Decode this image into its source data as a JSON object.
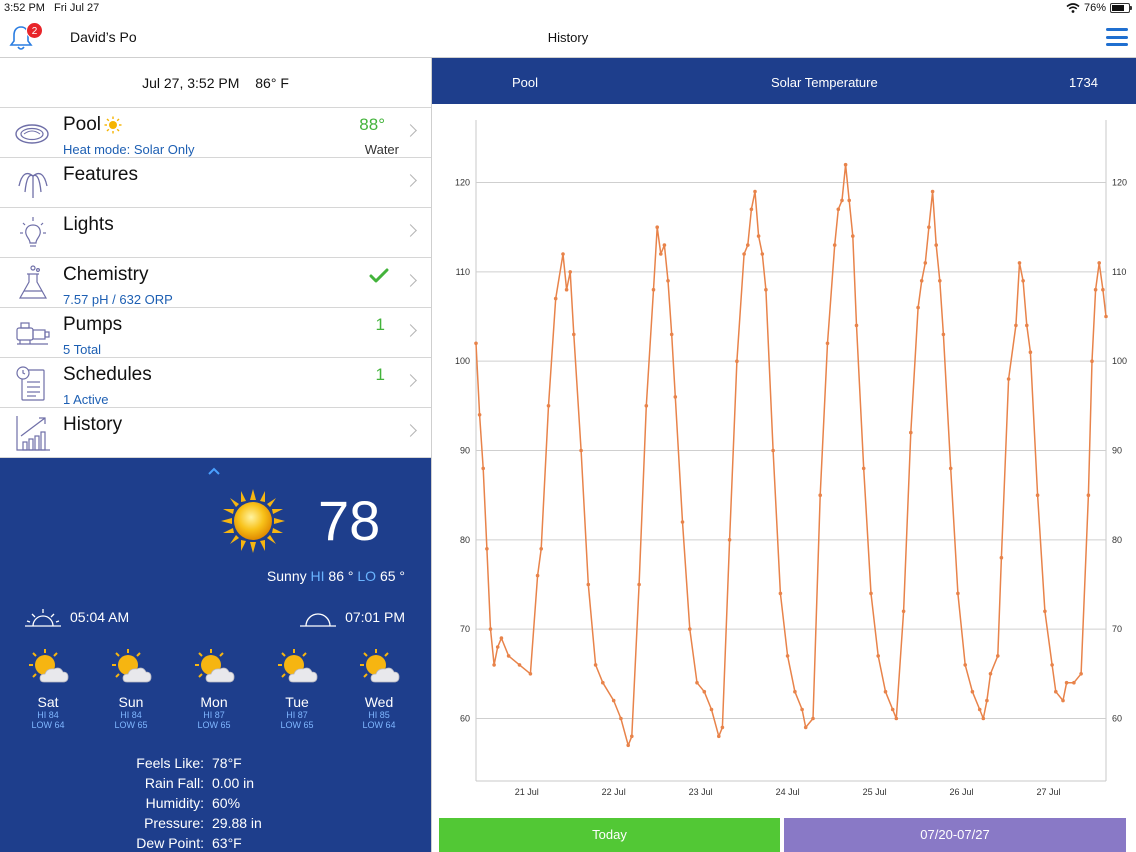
{
  "status_bar": {
    "time": "3:52 PM",
    "date": "Fri Jul 27",
    "battery": "76%",
    "battery_fraction": 0.76
  },
  "header": {
    "pool_name": "David’s Po",
    "title": "History",
    "notification_count": "2",
    "bell_icon": "bell-icon",
    "menu_icon": "hamburger-menu-icon"
  },
  "left": {
    "date": "Jul 27, 3:52 PM",
    "air_temp": "86° F",
    "menu": [
      {
        "label": "Pool",
        "sub": "Heat mode: Solar Only",
        "value": "88°",
        "value2": "Water",
        "icon": "pool-icon"
      },
      {
        "label": "Features",
        "sub": "",
        "value": "",
        "value2": "",
        "icon": "fountain-icon"
      },
      {
        "label": "Lights",
        "sub": "",
        "value": "",
        "value2": "",
        "icon": "lightbulb-icon"
      },
      {
        "label": "Chemistry",
        "sub": "7.57 pH / 632 ORP",
        "value": "",
        "value2": "",
        "icon": "beaker-icon"
      },
      {
        "label": "Pumps",
        "sub": "5 Total",
        "value": "1",
        "value2": "",
        "icon": "pump-icon"
      },
      {
        "label": "Schedules",
        "sub": "1 Active",
        "value": "1",
        "value2": "",
        "icon": "schedule-icon"
      },
      {
        "label": "History",
        "sub": "",
        "value": "",
        "value2": "",
        "icon": "bar-chart-icon"
      }
    ]
  },
  "weather": {
    "temp": "78",
    "condition": "Sunny",
    "hi_label": "HI",
    "hi": "86 °",
    "lo_label": "LO",
    "lo": "65 °",
    "sunrise": "05:04 AM",
    "sunset": "07:01 PM",
    "forecast": [
      {
        "day": "Sat",
        "hi": "HI 84",
        "lo": "LOW 64"
      },
      {
        "day": "Sun",
        "hi": "HI 84",
        "lo": "LOW 65"
      },
      {
        "day": "Mon",
        "hi": "HI 87",
        "lo": "LOW 65"
      },
      {
        "day": "Tue",
        "hi": "HI 87",
        "lo": "LOW 65"
      },
      {
        "day": "Wed",
        "hi": "HI 85",
        "lo": "LOW 64"
      }
    ],
    "details": [
      {
        "label": "Feels Like:",
        "value": "78°F"
      },
      {
        "label": "Rain Fall:",
        "value": "0.00 in"
      },
      {
        "label": "Humidity:",
        "value": "60%"
      },
      {
        "label": "Pressure:",
        "value": "29.88 in"
      },
      {
        "label": "Dew Point:",
        "value": "63°F"
      }
    ]
  },
  "chart_header": {
    "body": "Pool",
    "sensor": "Solar Temperature",
    "count": "1734"
  },
  "buttons": {
    "today": "Today",
    "range": "07/20-07/27"
  },
  "chart_data": {
    "type": "line",
    "series_color": "#e8834a",
    "x_ticks": [
      "21 Jul",
      "22 Jul",
      "23 Jul",
      "24 Jul",
      "25 Jul",
      "26 Jul",
      "27 Jul"
    ],
    "xlim": [
      "2018-07-20T10:00",
      "2018-07-27T15:52"
    ],
    "ylim": [
      53,
      127
    ],
    "y_ticks": [
      60,
      70,
      80,
      90,
      100,
      110,
      120
    ],
    "grid": "horizontal",
    "points": [
      [
        "2018-07-20T10:00",
        102
      ],
      [
        "2018-07-20T11:00",
        94
      ],
      [
        "2018-07-20T12:00",
        88
      ],
      [
        "2018-07-20T13:00",
        79
      ],
      [
        "2018-07-20T14:00",
        70
      ],
      [
        "2018-07-20T15:00",
        66
      ],
      [
        "2018-07-20T16:00",
        68
      ],
      [
        "2018-07-20T17:00",
        69
      ],
      [
        "2018-07-20T19:00",
        67
      ],
      [
        "2018-07-20T22:00",
        66
      ],
      [
        "2018-07-21T01:00",
        65
      ],
      [
        "2018-07-21T03:00",
        76
      ],
      [
        "2018-07-21T04:00",
        79
      ],
      [
        "2018-07-21T06:00",
        95
      ],
      [
        "2018-07-21T08:00",
        107
      ],
      [
        "2018-07-21T10:00",
        112
      ],
      [
        "2018-07-21T11:00",
        108
      ],
      [
        "2018-07-21T12:00",
        110
      ],
      [
        "2018-07-21T13:00",
        103
      ],
      [
        "2018-07-21T15:00",
        90
      ],
      [
        "2018-07-21T17:00",
        75
      ],
      [
        "2018-07-21T19:00",
        66
      ],
      [
        "2018-07-21T21:00",
        64
      ],
      [
        "2018-07-22T00:00",
        62
      ],
      [
        "2018-07-22T02:00",
        60
      ],
      [
        "2018-07-22T04:00",
        57
      ],
      [
        "2018-07-22T05:00",
        58
      ],
      [
        "2018-07-22T07:00",
        75
      ],
      [
        "2018-07-22T09:00",
        95
      ],
      [
        "2018-07-22T11:00",
        108
      ],
      [
        "2018-07-22T12:00",
        115
      ],
      [
        "2018-07-22T13:00",
        112
      ],
      [
        "2018-07-22T14:00",
        113
      ],
      [
        "2018-07-22T15:00",
        109
      ],
      [
        "2018-07-22T16:00",
        103
      ],
      [
        "2018-07-22T17:00",
        96
      ],
      [
        "2018-07-22T19:00",
        82
      ],
      [
        "2018-07-22T21:00",
        70
      ],
      [
        "2018-07-22T23:00",
        64
      ],
      [
        "2018-07-23T01:00",
        63
      ],
      [
        "2018-07-23T03:00",
        61
      ],
      [
        "2018-07-23T05:00",
        58
      ],
      [
        "2018-07-23T06:00",
        59
      ],
      [
        "2018-07-23T08:00",
        80
      ],
      [
        "2018-07-23T10:00",
        100
      ],
      [
        "2018-07-23T12:00",
        112
      ],
      [
        "2018-07-23T13:00",
        113
      ],
      [
        "2018-07-23T14:00",
        117
      ],
      [
        "2018-07-23T15:00",
        119
      ],
      [
        "2018-07-23T16:00",
        114
      ],
      [
        "2018-07-23T17:00",
        112
      ],
      [
        "2018-07-23T18:00",
        108
      ],
      [
        "2018-07-23T20:00",
        90
      ],
      [
        "2018-07-23T22:00",
        74
      ],
      [
        "2018-07-24T00:00",
        67
      ],
      [
        "2018-07-24T02:00",
        63
      ],
      [
        "2018-07-24T04:00",
        61
      ],
      [
        "2018-07-24T05:00",
        59
      ],
      [
        "2018-07-24T07:00",
        60
      ],
      [
        "2018-07-24T09:00",
        85
      ],
      [
        "2018-07-24T11:00",
        102
      ],
      [
        "2018-07-24T13:00",
        113
      ],
      [
        "2018-07-24T14:00",
        117
      ],
      [
        "2018-07-24T15:00",
        118
      ],
      [
        "2018-07-24T16:00",
        122
      ],
      [
        "2018-07-24T17:00",
        118
      ],
      [
        "2018-07-24T18:00",
        114
      ],
      [
        "2018-07-24T19:00",
        104
      ],
      [
        "2018-07-24T21:00",
        88
      ],
      [
        "2018-07-24T23:00",
        74
      ],
      [
        "2018-07-25T01:00",
        67
      ],
      [
        "2018-07-25T03:00",
        63
      ],
      [
        "2018-07-25T05:00",
        61
      ],
      [
        "2018-07-25T06:00",
        60
      ],
      [
        "2018-07-25T08:00",
        72
      ],
      [
        "2018-07-25T10:00",
        92
      ],
      [
        "2018-07-25T12:00",
        106
      ],
      [
        "2018-07-25T13:00",
        109
      ],
      [
        "2018-07-25T14:00",
        111
      ],
      [
        "2018-07-25T15:00",
        115
      ],
      [
        "2018-07-25T16:00",
        119
      ],
      [
        "2018-07-25T17:00",
        113
      ],
      [
        "2018-07-25T18:00",
        109
      ],
      [
        "2018-07-25T19:00",
        103
      ],
      [
        "2018-07-25T21:00",
        88
      ],
      [
        "2018-07-25T23:00",
        74
      ],
      [
        "2018-07-26T01:00",
        66
      ],
      [
        "2018-07-26T03:00",
        63
      ],
      [
        "2018-07-26T05:00",
        61
      ],
      [
        "2018-07-26T06:00",
        60
      ],
      [
        "2018-07-26T07:00",
        62
      ],
      [
        "2018-07-26T08:00",
        65
      ],
      [
        "2018-07-26T10:00",
        67
      ],
      [
        "2018-07-26T11:00",
        78
      ],
      [
        "2018-07-26T13:00",
        98
      ],
      [
        "2018-07-26T15:00",
        104
      ],
      [
        "2018-07-26T16:00",
        111
      ],
      [
        "2018-07-26T17:00",
        109
      ],
      [
        "2018-07-26T18:00",
        104
      ],
      [
        "2018-07-26T19:00",
        101
      ],
      [
        "2018-07-26T21:00",
        85
      ],
      [
        "2018-07-26T23:00",
        72
      ],
      [
        "2018-07-27T01:00",
        66
      ],
      [
        "2018-07-27T02:00",
        63
      ],
      [
        "2018-07-27T04:00",
        62
      ],
      [
        "2018-07-27T05:00",
        64
      ],
      [
        "2018-07-27T07:00",
        64
      ],
      [
        "2018-07-27T09:00",
        65
      ],
      [
        "2018-07-27T11:00",
        85
      ],
      [
        "2018-07-27T12:00",
        100
      ],
      [
        "2018-07-27T13:00",
        108
      ],
      [
        "2018-07-27T14:00",
        111
      ],
      [
        "2018-07-27T15:00",
        108
      ],
      [
        "2018-07-27T15:52",
        105
      ]
    ]
  }
}
